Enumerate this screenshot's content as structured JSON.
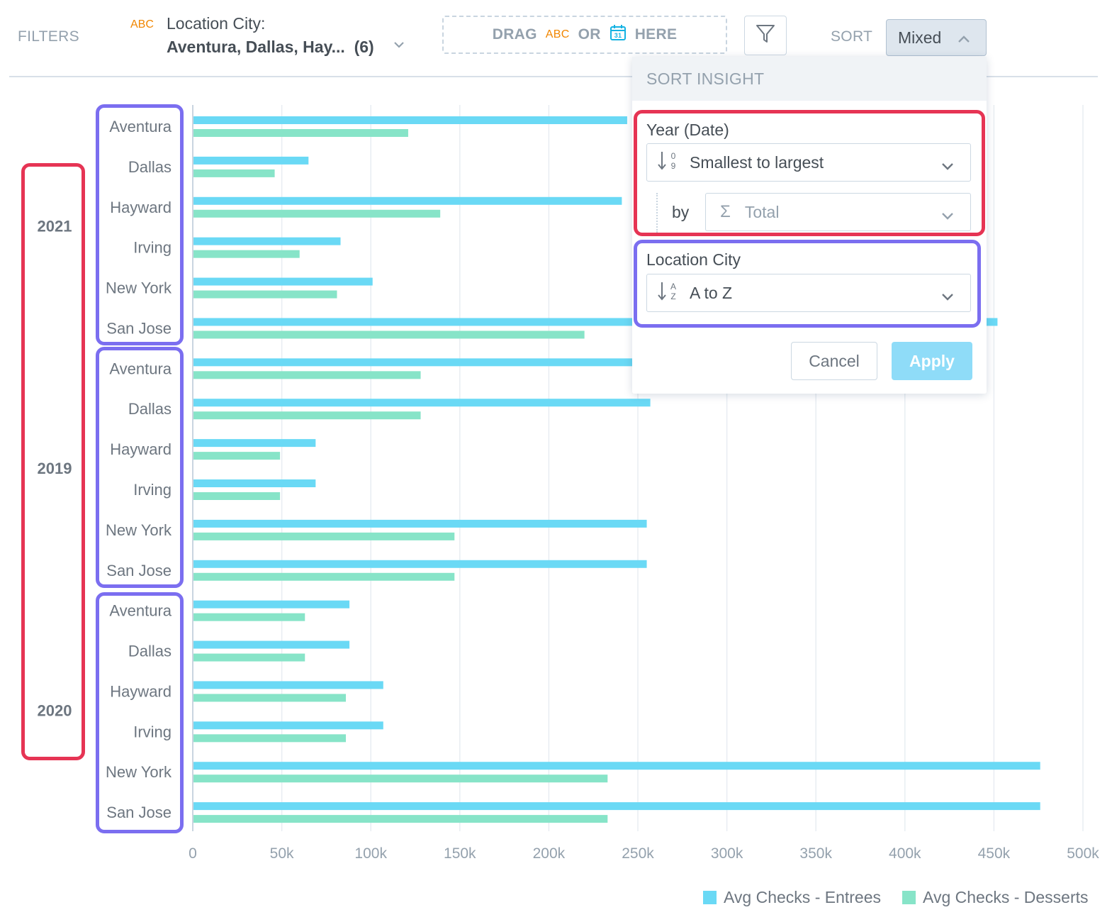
{
  "filters": {
    "label": "FILTERS",
    "attr_type": "ABC",
    "city_label": "Location City:",
    "city_values": "Aventura, Dallas, Hay...",
    "city_count": "(6)",
    "dropzone": {
      "drag": "DRAG",
      "abc": "ABC",
      "or": "OR",
      "here": "HERE"
    }
  },
  "sort": {
    "label": "SORT",
    "value": "Mixed"
  },
  "sort_dialog": {
    "title": "SORT INSIGHT",
    "year_group": {
      "label": "Year (Date)",
      "order": "Smallest to largest",
      "order_icon": "sort-numeric-icon",
      "by": "by",
      "measure": "Total",
      "measure_icon": "sigma-icon"
    },
    "city_group": {
      "label": "Location City",
      "order": "A to Z",
      "order_icon": "sort-alpha-icon"
    },
    "cancel": "Cancel",
    "apply": "Apply"
  },
  "legend": [
    {
      "name": "Avg Checks - Entrees",
      "color": "#6ad9f5"
    },
    {
      "name": "Avg Checks - Desserts",
      "color": "#87e4c8"
    }
  ],
  "chart_data": {
    "type": "bar",
    "orientation": "horizontal",
    "xlim": [
      0,
      500000
    ],
    "x_ticks": [
      "0",
      "50k",
      "100k",
      "150k",
      "200k",
      "250k",
      "300k",
      "350k",
      "400k",
      "450k",
      "500k"
    ],
    "grid": true,
    "legend_position": "bottom-right",
    "groups": [
      {
        "year": "2021",
        "categories": [
          "Aventura",
          "Dallas",
          "Hayward",
          "Irving",
          "New York",
          "San Jose"
        ],
        "series": [
          {
            "name": "Avg Checks - Entrees",
            "values": [
              244000,
              65000,
              241000,
              83000,
              101000,
              452000
            ]
          },
          {
            "name": "Avg Checks - Desserts",
            "values": [
              121000,
              46000,
              139000,
              60000,
              81000,
              220000
            ]
          }
        ]
      },
      {
        "year": "2019",
        "categories": [
          "Aventura",
          "Dallas",
          "Hayward",
          "Irving",
          "New York",
          "San Jose"
        ],
        "series": [
          {
            "name": "Avg Checks - Entrees",
            "values": [
              247000,
              257000,
              69000,
              69000,
              255000,
              255000
            ]
          },
          {
            "name": "Avg Checks - Desserts",
            "values": [
              128000,
              128000,
              49000,
              49000,
              147000,
              147000
            ]
          }
        ]
      },
      {
        "year": "2020",
        "categories": [
          "Aventura",
          "Dallas",
          "Hayward",
          "Irving",
          "New York",
          "San Jose"
        ],
        "series": [
          {
            "name": "Avg Checks - Entrees",
            "values": [
              88000,
              88000,
              107000,
              107000,
              476000,
              476000
            ]
          },
          {
            "name": "Avg Checks - Desserts",
            "values": [
              63000,
              63000,
              86000,
              86000,
              233000,
              233000
            ]
          }
        ]
      }
    ]
  },
  "colors": {
    "entrees": "#6ad9f5",
    "desserts": "#87e4c8",
    "annotation_year": "#e63454",
    "annotation_city": "#7b6ef0"
  }
}
